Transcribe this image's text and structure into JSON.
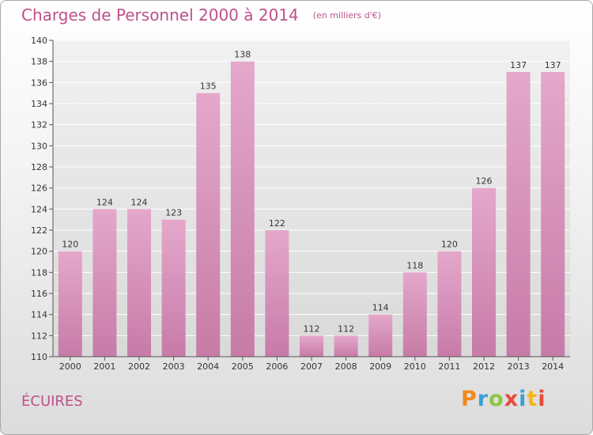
{
  "header": {
    "title": "Charges de Personnel 2000 à 2014",
    "subtitle": "(en milliers d'€)"
  },
  "footer": {
    "commune": "ÉCUIRES",
    "logo": "Proxiti"
  },
  "colors": {
    "bar_light": "#e4a8cb",
    "bar_dark": "#c77ba7",
    "text": "#c0508a",
    "logo_letters": [
      "#f08a1c",
      "#3a9fd8",
      "#8cc63f",
      "#e84a3c",
      "#3a9fd8",
      "#f6b41a",
      "#e84a3c"
    ]
  },
  "chart_data": {
    "type": "bar",
    "title": "Charges de Personnel 2000 à 2014",
    "subtitle": "(en milliers d'€)",
    "xlabel": "",
    "ylabel": "",
    "categories": [
      "2000",
      "2001",
      "2002",
      "2003",
      "2004",
      "2005",
      "2006",
      "2007",
      "2008",
      "2009",
      "2010",
      "2011",
      "2012",
      "2013",
      "2014"
    ],
    "values": [
      120,
      124,
      124,
      123,
      135,
      138,
      122,
      112,
      112,
      114,
      118,
      120,
      126,
      137,
      137
    ],
    "ylim": [
      110,
      140
    ],
    "yticks": [
      110,
      112,
      114,
      116,
      118,
      120,
      122,
      124,
      126,
      128,
      130,
      132,
      134,
      136,
      138,
      140
    ],
    "grid": true,
    "legend": "none"
  }
}
